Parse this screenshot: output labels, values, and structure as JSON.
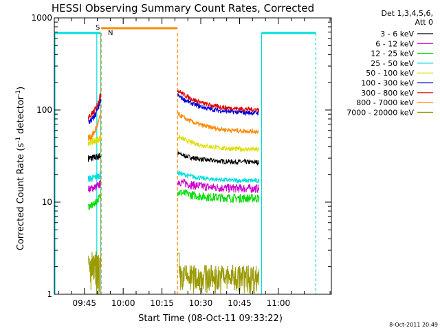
{
  "chart_data": {
    "type": "line",
    "title": "HESSI Observing Summary Count Rates, Corrected",
    "xlabel": "Start Time (08-Oct-11 09:33:22)",
    "ylabel_main": "Corrected Count Rate (s",
    "ylabel_sup1": "-1",
    "ylabel_mid": " detector",
    "ylabel_sup2": "-1",
    "ylabel_end": ")",
    "yscale": "log",
    "ylim": [
      1,
      1000
    ],
    "xlim": [
      "09:33:22",
      "11:20:30"
    ],
    "x_ticks": [
      "09:45",
      "10:00",
      "10:15",
      "10:30",
      "10:45",
      "11:00"
    ],
    "y_ticks": [
      "1",
      "10",
      "100",
      "1000"
    ],
    "legend_header": [
      "Det 1,3,4,5,6,",
      "Att 0"
    ],
    "legend_placement": "top-right, outside plot",
    "series": [
      {
        "name": "3 - 6 keV",
        "color": "#000000",
        "values": [
          30,
          32,
          34,
          32,
          30,
          29,
          28,
          28,
          27
        ]
      },
      {
        "name": "6 - 12 keV",
        "color": "#cc00cc",
        "values": [
          14,
          16,
          17,
          16,
          15,
          14,
          14,
          14,
          14
        ]
      },
      {
        "name": "12 - 25 keV",
        "color": "#00dd00",
        "values": [
          9,
          12,
          13,
          12,
          11,
          10.5,
          10.5,
          11,
          11
        ]
      },
      {
        "name": "25 - 50 keV",
        "color": "#00dddd",
        "values": [
          18,
          20,
          21,
          19,
          17,
          16,
          16,
          16.5,
          17
        ]
      },
      {
        "name": "50 - 100 keV",
        "color": "#dddd00",
        "values": [
          45,
          50,
          52,
          45,
          40,
          38,
          37,
          37,
          37
        ]
      },
      {
        "name": "100 - 300 keV",
        "color": "#0000dd",
        "values": [
          75,
          130,
          145,
          125,
          110,
          100,
          95,
          92,
          92
        ]
      },
      {
        "name": "300 - 800 keV",
        "color": "#dd0000",
        "values": [
          85,
          150,
          165,
          140,
          120,
          110,
          105,
          102,
          100
        ]
      },
      {
        "name": "800 - 7000 keV",
        "color": "#ff8800",
        "values": [
          50,
          90,
          92,
          78,
          67,
          62,
          60,
          58,
          58
        ]
      },
      {
        "name": "7000 - 20000 keV",
        "color": "#999900",
        "values": [
          1,
          2.5,
          1.5,
          1.2,
          1,
          1,
          1,
          1,
          1
        ]
      }
    ],
    "flags": [
      {
        "label": "S",
        "color": "#ff8800"
      },
      {
        "label": "N",
        "color": "#00dddd"
      }
    ],
    "timestamp": "8-Oct-2011 20:49"
  }
}
